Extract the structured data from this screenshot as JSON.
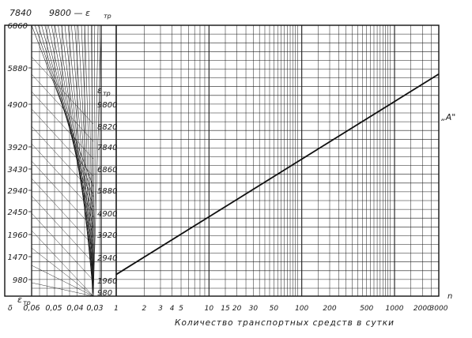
{
  "chart_data": {
    "type": "line",
    "top_labels": [
      "7840",
      "9800 — ε",
      "тр"
    ],
    "left_axis_ticks": [
      "6860",
      "5880",
      "4900",
      "3920",
      "3430",
      "2940",
      "2450",
      "1960",
      "1470",
      "980"
    ],
    "left_axis_label": "ε",
    "left_axis_label_sub": "тр",
    "scale_header": "ε",
    "scale_header_sub": "тр",
    "inner_scale_ticks": [
      "9800",
      "8820",
      "7840",
      "6860",
      "5880",
      "4900",
      "3920",
      "2940",
      "1960",
      "980"
    ],
    "bottom_left_ticks": [
      "δ",
      "0,06",
      "0,05",
      "0,04",
      "0,03"
    ],
    "x_tick_labels": [
      "1",
      "2",
      "3",
      "4",
      "5",
      "10",
      "15",
      "20",
      "30",
      "50",
      "100",
      "200",
      "500",
      "1000",
      "2000",
      "3000"
    ],
    "x_tick_values": [
      1,
      2,
      3,
      4,
      5,
      10,
      15,
      20,
      30,
      50,
      100,
      200,
      500,
      1000,
      2000,
      3000
    ],
    "x_unit": "n",
    "xlabel": "Количество транспортных средств в сутки",
    "x_scale": "log",
    "xlim": [
      1,
      3000
    ],
    "series": [
      {
        "name": "„А\"",
        "x": [
          1,
          3000
        ],
        "y_fraction": [
          0.08,
          0.82
        ]
      }
    ]
  }
}
